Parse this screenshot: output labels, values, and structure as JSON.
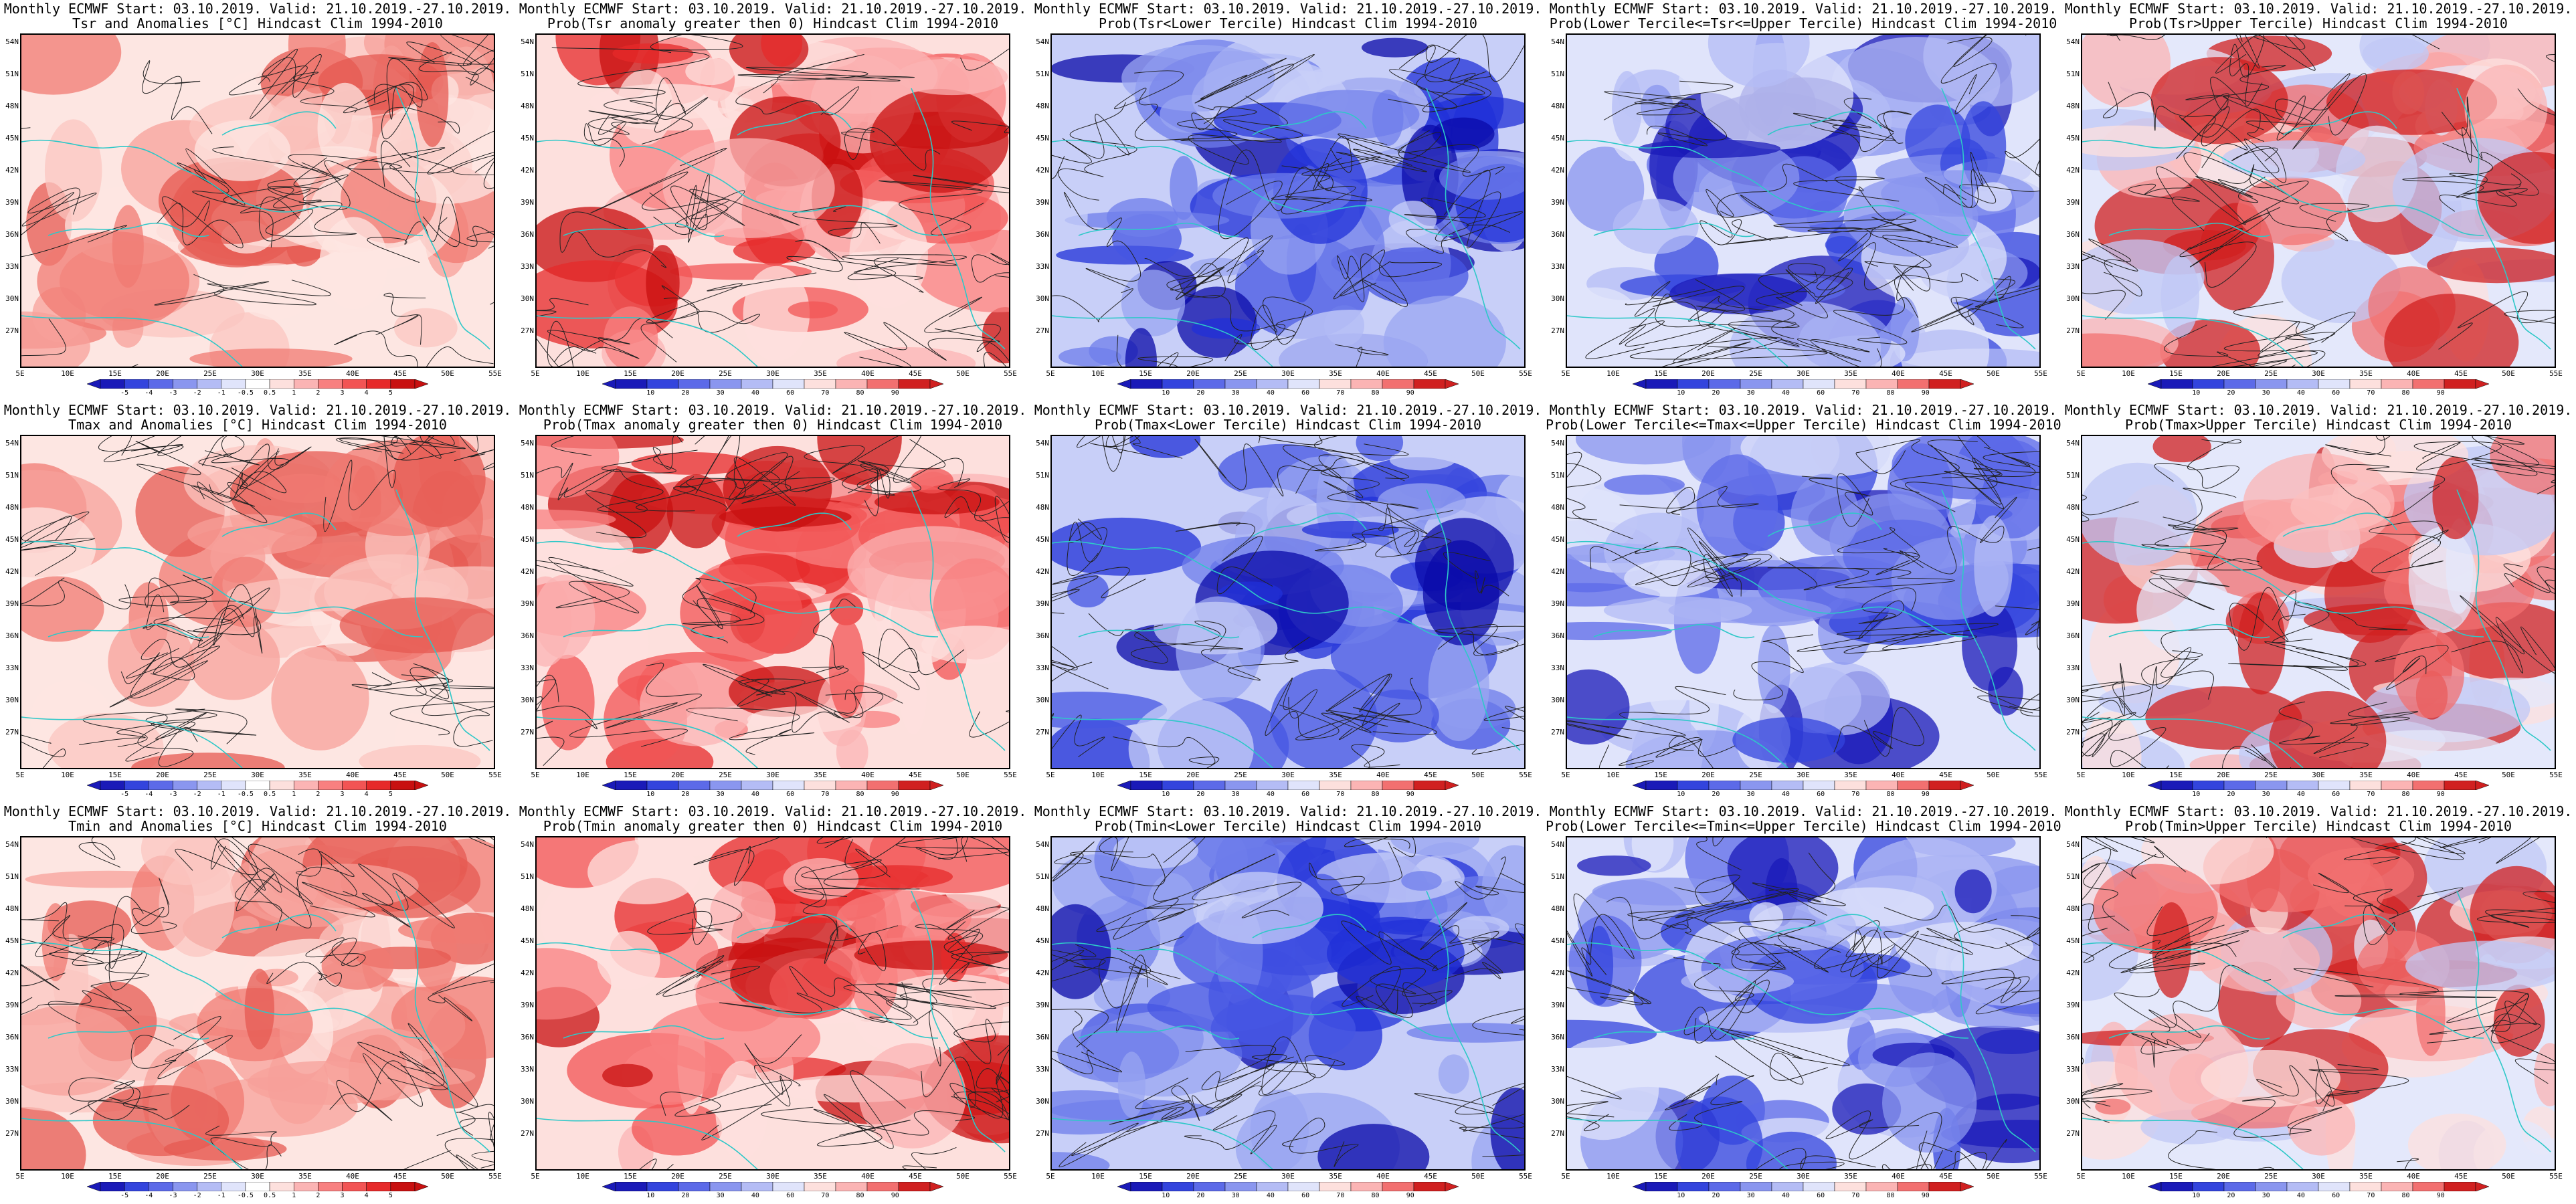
{
  "maps": [
    {
      "title1": "Monthly ECMWF Start: 03.10.2019. Valid: 21.10.2019.-27.10.2019.",
      "title2": "Tsr and Anomalies [°C] Hindcast Clim 1994-2010",
      "scheme": "anomaly",
      "cbar": [
        "-5",
        "-4",
        "-3",
        "-2",
        "-1",
        "-0.5",
        "0.5",
        "1",
        "2",
        "3",
        "4",
        "5"
      ]
    },
    {
      "title1": "Monthly ECMWF Start: 03.10.2019. Valid: 21.10.2019.-27.10.2019.",
      "title2": "Prob(Tsr anomaly greater then 0) Hindcast Clim 1994-2010",
      "scheme": "prob-red",
      "cbar": [
        "10",
        "20",
        "30",
        "40",
        "60",
        "70",
        "80",
        "90"
      ]
    },
    {
      "title1": "Monthly ECMWF Start: 03.10.2019. Valid: 21.10.2019.-27.10.2019.",
      "title2": "Prob(Tsr<Lower Tercile) Hindcast Clim 1994-2010",
      "scheme": "prob-blue",
      "cbar": [
        "10",
        "20",
        "30",
        "40",
        "60",
        "70",
        "80",
        "90"
      ]
    },
    {
      "title1": "Monthly ECMWF Start: 03.10.2019. Valid: 21.10.2019.-27.10.2019.",
      "title2": "Prob(Lower Tercile<=Tsr<=Upper Tercile) Hindcast Clim 1994-2010",
      "scheme": "prob-mixed",
      "cbar": [
        "10",
        "20",
        "30",
        "40",
        "60",
        "70",
        "80",
        "90"
      ]
    },
    {
      "title1": "Monthly ECMWF Start: 03.10.2019. Valid: 21.10.2019.-27.10.2019.",
      "title2": "Prob(Tsr>Upper Tercile) Hindcast Clim 1994-2010",
      "scheme": "prob-light",
      "cbar": [
        "10",
        "20",
        "30",
        "40",
        "60",
        "70",
        "80",
        "90"
      ]
    },
    {
      "title1": "Monthly ECMWF Start: 03.10.2019. Valid: 21.10.2019.-27.10.2019.",
      "title2": "Tmax and Anomalies [°C] Hindcast Clim 1994-2010",
      "scheme": "anomaly",
      "cbar": [
        "-5",
        "-4",
        "-3",
        "-2",
        "-1",
        "-0.5",
        "0.5",
        "1",
        "2",
        "3",
        "4",
        "5"
      ]
    },
    {
      "title1": "Monthly ECMWF Start: 03.10.2019. Valid: 21.10.2019.-27.10.2019.",
      "title2": "Prob(Tmax anomaly greater then 0) Hindcast Clim 1994-2010",
      "scheme": "prob-red",
      "cbar": [
        "10",
        "20",
        "30",
        "40",
        "60",
        "70",
        "80",
        "90"
      ]
    },
    {
      "title1": "Monthly ECMWF Start: 03.10.2019. Valid: 21.10.2019.-27.10.2019.",
      "title2": "Prob(Tmax<Lower Tercile) Hindcast Clim 1994-2010",
      "scheme": "prob-blue",
      "cbar": [
        "10",
        "20",
        "30",
        "40",
        "60",
        "70",
        "80",
        "90"
      ]
    },
    {
      "title1": "Monthly ECMWF Start: 03.10.2019. Valid: 21.10.2019.-27.10.2019.",
      "title2": "Prob(Lower Tercile<=Tmax<=Upper Tercile) Hindcast Clim 1994-2010",
      "scheme": "prob-mixed",
      "cbar": [
        "10",
        "20",
        "30",
        "40",
        "60",
        "70",
        "80",
        "90"
      ]
    },
    {
      "title1": "Monthly ECMWF Start: 03.10.2019. Valid: 21.10.2019.-27.10.2019.",
      "title2": "Prob(Tmax>Upper Tercile) Hindcast Clim 1994-2010",
      "scheme": "prob-light",
      "cbar": [
        "10",
        "20",
        "30",
        "40",
        "60",
        "70",
        "80",
        "90"
      ]
    },
    {
      "title1": "Monthly ECMWF Start: 03.10.2019. Valid: 21.10.2019.-27.10.2019.",
      "title2": "Tmin and Anomalies [°C] Hindcast Clim 1994-2010",
      "scheme": "anomaly",
      "cbar": [
        "-5",
        "-4",
        "-3",
        "-2",
        "-1",
        "-0.5",
        "0.5",
        "1",
        "2",
        "3",
        "4",
        "5"
      ]
    },
    {
      "title1": "Monthly ECMWF Start: 03.10.2019. Valid: 21.10.2019.-27.10.2019.",
      "title2": "Prob(Tmin anomaly greater then 0) Hindcast Clim 1994-2010",
      "scheme": "prob-red",
      "cbar": [
        "10",
        "20",
        "30",
        "40",
        "60",
        "70",
        "80",
        "90"
      ]
    },
    {
      "title1": "Monthly ECMWF Start: 03.10.2019. Valid: 21.10.2019.-27.10.2019.",
      "title2": "Prob(Tmin<Lower Tercile) Hindcast Clim 1994-2010",
      "scheme": "prob-blue",
      "cbar": [
        "10",
        "20",
        "30",
        "40",
        "60",
        "70",
        "80",
        "90"
      ]
    },
    {
      "title1": "Monthly ECMWF Start: 03.10.2019. Valid: 21.10.2019.-27.10.2019.",
      "title2": "Prob(Lower Tercile<=Tmin<=Upper Tercile) Hindcast Clim 1994-2010",
      "scheme": "prob-mixed",
      "cbar": [
        "10",
        "20",
        "30",
        "40",
        "60",
        "70",
        "80",
        "90"
      ]
    },
    {
      "title1": "Monthly ECMWF Start: 03.10.2019. Valid: 21.10.2019.-27.10.2019.",
      "title2": "Prob(Tmin>Upper Tercile) Hindcast Clim 1994-2010",
      "scheme": "prob-light",
      "cbar": [
        "10",
        "20",
        "30",
        "40",
        "60",
        "70",
        "80",
        "90"
      ]
    }
  ],
  "lat_labels": [
    "54N",
    "51N",
    "48N",
    "45N",
    "42N",
    "39N",
    "36N",
    "33N",
    "30N",
    "27N"
  ],
  "lon_labels": [
    "5E",
    "10E",
    "15E",
    "20E",
    "25E",
    "30E",
    "35E",
    "40E",
    "45E",
    "50E",
    "55E"
  ],
  "colors": {
    "coast": "#2ec8c8",
    "contour": "#222222",
    "red_scale": [
      "#fde0dd",
      "#fbb4b4",
      "#f88080",
      "#f25454",
      "#e62a2a",
      "#c81010"
    ],
    "blue_scale": [
      "#e0e4fb",
      "#b4bcf5",
      "#8a96ef",
      "#5c6ae8",
      "#2f3ee0",
      "#1a1ad0",
      "#0a0a9a"
    ]
  }
}
